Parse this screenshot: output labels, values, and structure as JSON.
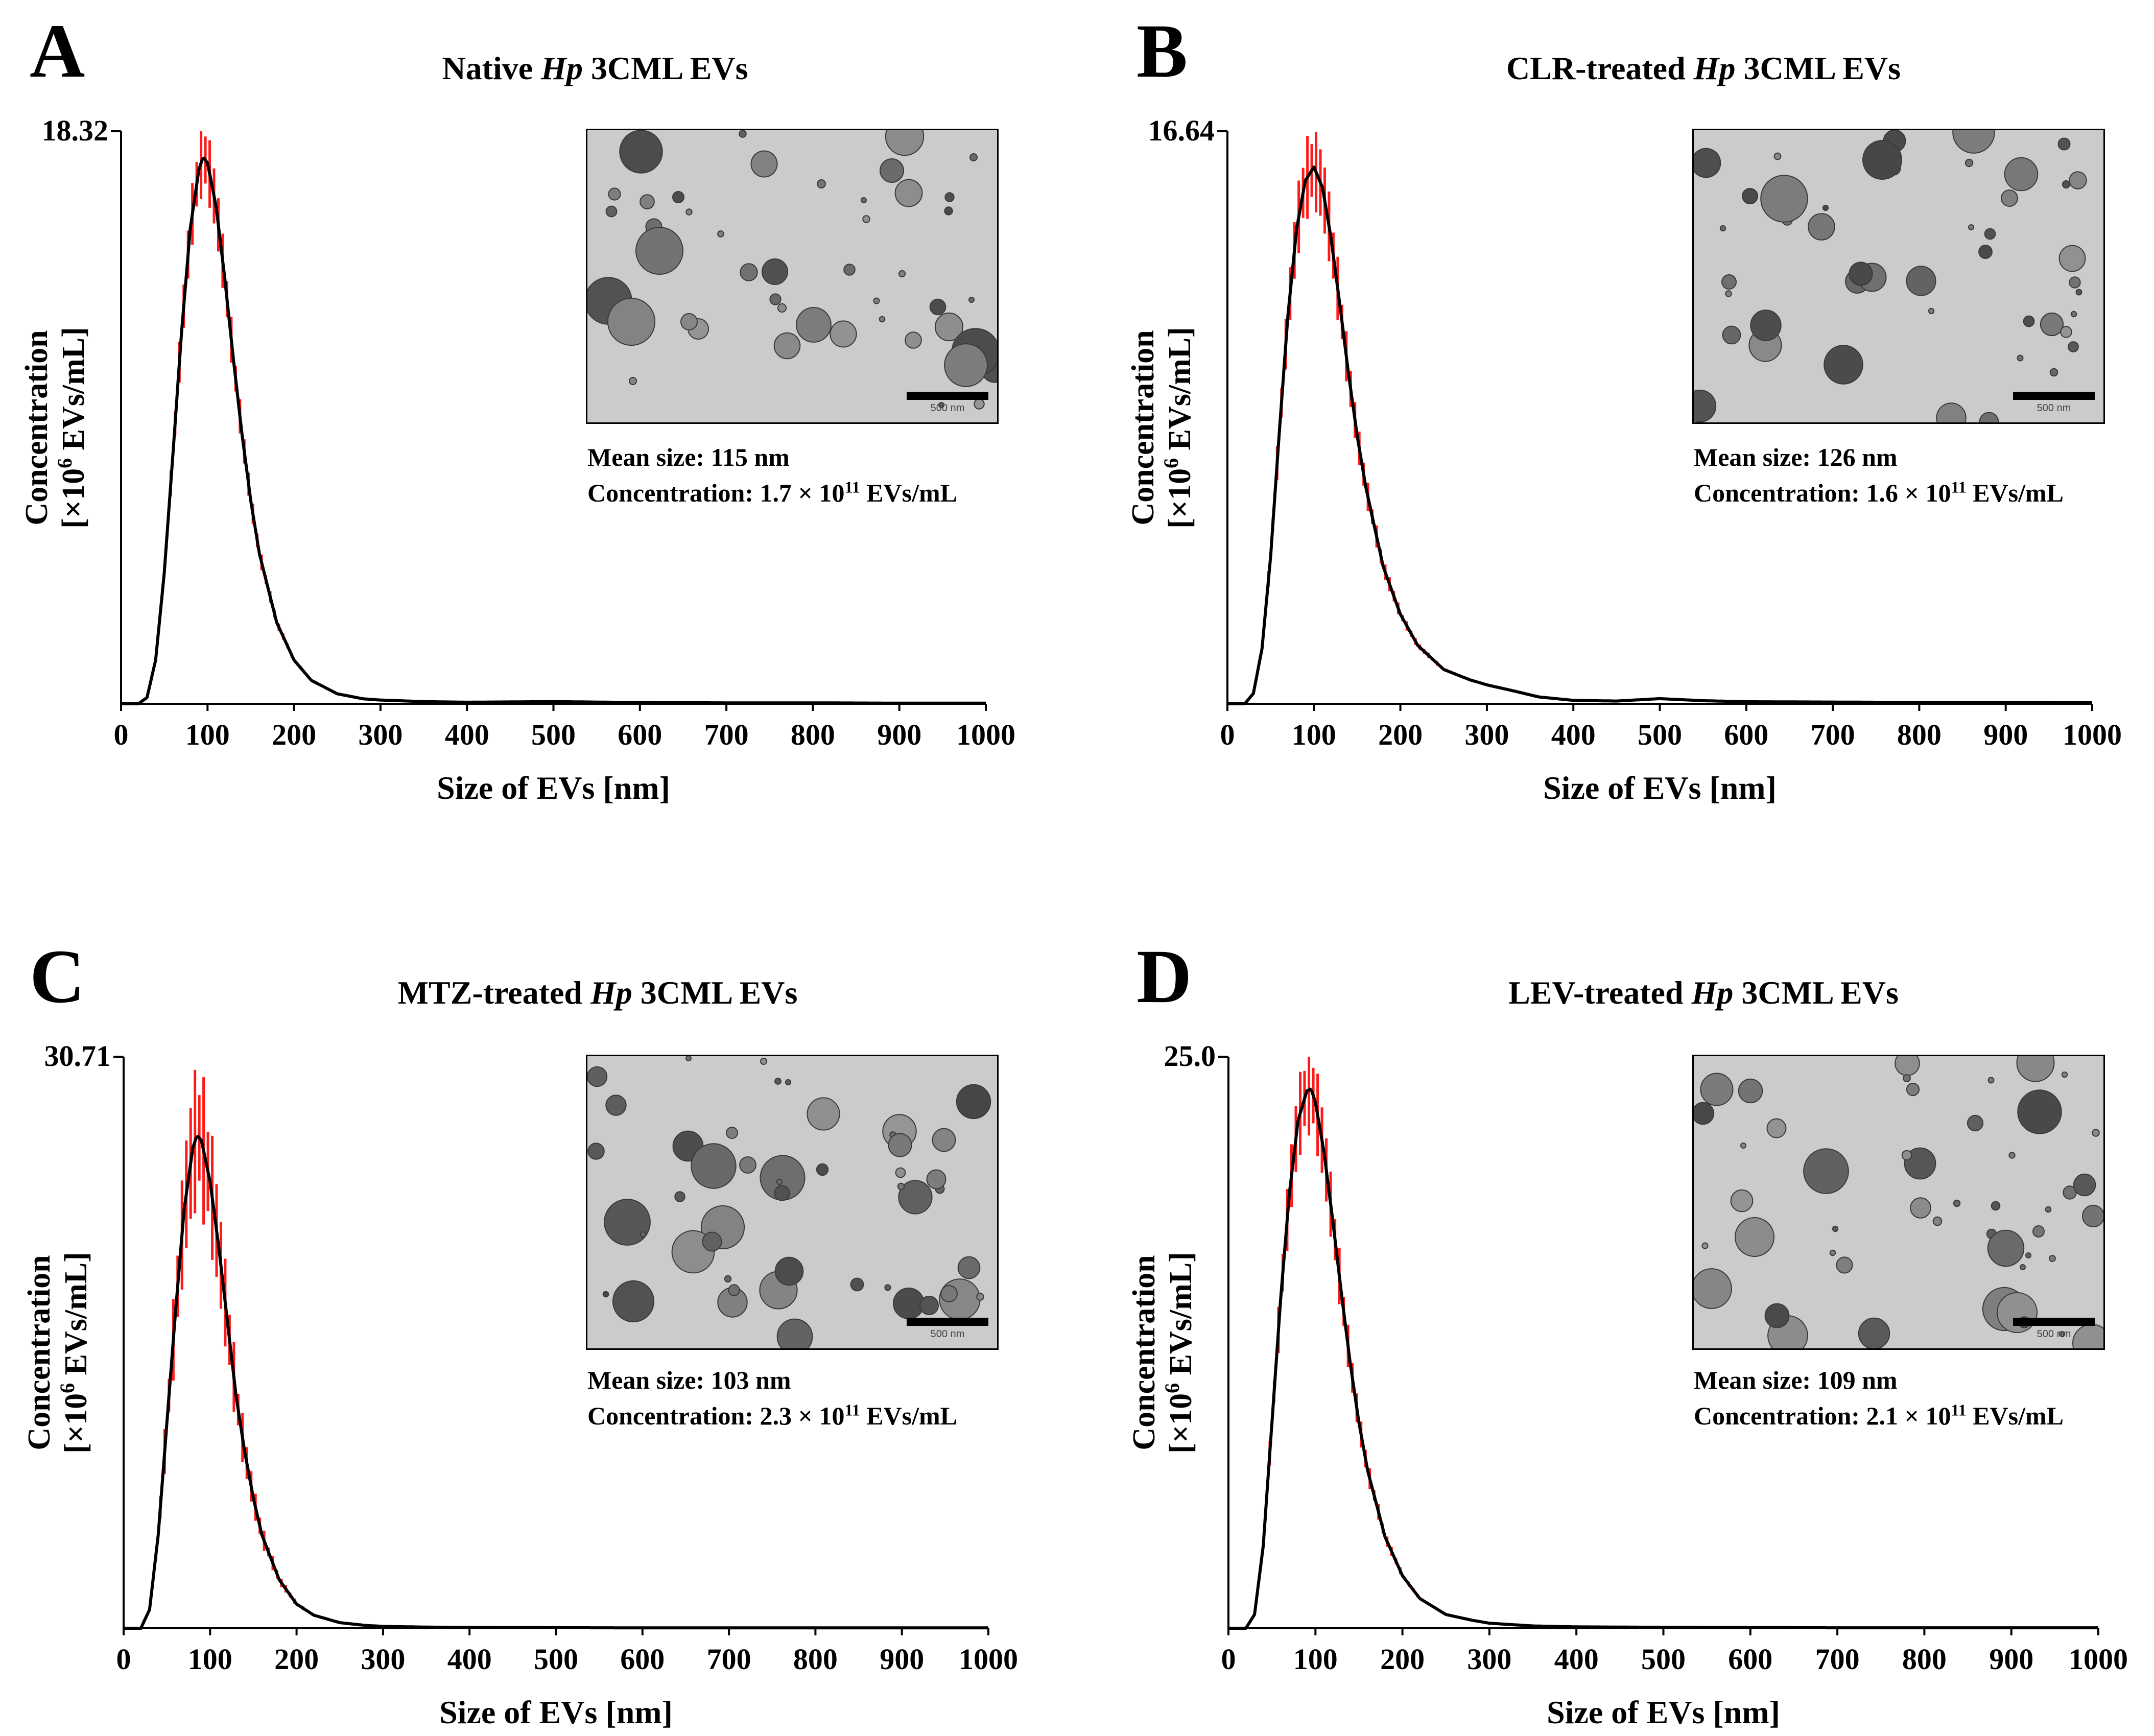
{
  "figure": {
    "x_axis_label": "Size of EVs [nm]",
    "y_axis_label_line1": "Concentration",
    "y_axis_label_line2_prefix": "[×10",
    "y_axis_label_line2_exp": "6",
    "y_axis_label_line2_suffix": " EVs/mL]",
    "x_ticks": [
      0,
      100,
      200,
      300,
      400,
      500,
      600,
      700,
      800,
      900,
      1000
    ],
    "colors": {
      "histogram": "#ff1a1a",
      "curve": "#000000"
    },
    "tem_scale_bar_label": "500 nm"
  },
  "chart_data": [
    {
      "type": "line",
      "panel_letter": "A",
      "title_pre": "Native ",
      "title_italic": "Hp",
      "title_post": " 3CML EVs",
      "y_max_label": "18.32",
      "ylim": [
        0,
        18.32
      ],
      "xlim": [
        0,
        1000
      ],
      "xlabel": "Size of EVs [nm]",
      "ylabel": "Concentration [×10^6 EVs/mL]",
      "series": [
        {
          "name": "Mean concentration (black line)",
          "x": [
            0,
            20,
            30,
            40,
            50,
            60,
            70,
            80,
            90,
            95,
            100,
            110,
            120,
            130,
            140,
            150,
            160,
            180,
            200,
            220,
            250,
            280,
            300,
            350,
            400,
            500,
            600,
            700,
            800,
            900,
            1000
          ],
          "values": [
            0,
            0,
            0.2,
            1.4,
            4.2,
            8.0,
            11.9,
            15.2,
            17.1,
            17.5,
            17.3,
            15.9,
            13.6,
            11.0,
            8.6,
            6.5,
            4.8,
            2.6,
            1.4,
            0.75,
            0.32,
            0.16,
            0.12,
            0.07,
            0.05,
            0.07,
            0.04,
            0.03,
            0.03,
            0.02,
            0.02
          ]
        },
        {
          "name": "Error (red bars)",
          "peak_error": 0.8
        }
      ],
      "mean_size_label": "Mean size: ",
      "mean_size_value": "115 nm",
      "concentration_label": "Concentration: ",
      "concentration_mantissa": "1.7 × 10",
      "concentration_exp": "11",
      "concentration_unit": " EVs/mL"
    },
    {
      "type": "line",
      "panel_letter": "B",
      "title_pre": "CLR-treated ",
      "title_italic": "Hp",
      "title_post": " 3CML EVs",
      "y_max_label": "16.64",
      "ylim": [
        0,
        16.64
      ],
      "xlim": [
        0,
        1000
      ],
      "xlabel": "Size of EVs [nm]",
      "ylabel": "Concentration [×10^6 EVs/mL]",
      "series": [
        {
          "name": "Mean concentration (black line)",
          "x": [
            0,
            20,
            30,
            40,
            50,
            60,
            70,
            80,
            90,
            100,
            110,
            120,
            130,
            140,
            150,
            160,
            180,
            200,
            220,
            250,
            280,
            300,
            330,
            360,
            400,
            450,
            500,
            550,
            600,
            700,
            800,
            900,
            1000
          ],
          "values": [
            0,
            0,
            0.3,
            1.6,
            4.3,
            7.9,
            11.3,
            13.8,
            15.2,
            15.6,
            15.0,
            13.5,
            11.6,
            9.6,
            7.8,
            6.3,
            4.0,
            2.6,
            1.7,
            1.0,
            0.7,
            0.55,
            0.38,
            0.2,
            0.1,
            0.08,
            0.15,
            0.09,
            0.06,
            0.05,
            0.04,
            0.04,
            0.03
          ]
        },
        {
          "name": "Error (red bars)",
          "peak_error": 0.9
        }
      ],
      "mean_size_label": "Mean size: ",
      "mean_size_value": "126 nm",
      "concentration_label": "Concentration: ",
      "concentration_mantissa": "1.6 × 10",
      "concentration_exp": "11",
      "concentration_unit": " EVs/mL"
    },
    {
      "type": "line",
      "panel_letter": "C",
      "title_pre": "MTZ-treated ",
      "title_italic": "Hp",
      "title_post": " 3CML EVs",
      "y_max_label": "30.71",
      "ylim": [
        0,
        30.71
      ],
      "xlim": [
        0,
        1000
      ],
      "xlabel": "Size of EVs [nm]",
      "ylabel": "Concentration [×10^6 EVs/mL]",
      "series": [
        {
          "name": "Mean concentration (black line)",
          "x": [
            0,
            20,
            30,
            40,
            50,
            60,
            70,
            80,
            85,
            90,
            100,
            110,
            120,
            130,
            140,
            150,
            160,
            180,
            200,
            220,
            250,
            280,
            300,
            350,
            400,
            500,
            600,
            700,
            800,
            900,
            1000
          ],
          "values": [
            0,
            0,
            1.0,
            5.0,
            11.0,
            17.0,
            22.5,
            25.8,
            26.5,
            26.2,
            24.0,
            20.5,
            16.5,
            12.5,
            9.5,
            7.0,
            5.0,
            2.6,
            1.3,
            0.7,
            0.3,
            0.15,
            0.1,
            0.06,
            0.04,
            0.03,
            0.02,
            0.02,
            0.02,
            0.02,
            0.02
          ]
        },
        {
          "name": "Error (red bars)",
          "peak_error": 3.5
        }
      ],
      "mean_size_label": "Mean size: ",
      "mean_size_value": "103 nm",
      "concentration_label": "Concentration: ",
      "concentration_mantissa": "2.3 × 10",
      "concentration_exp": "11",
      "concentration_unit": " EVs/mL"
    },
    {
      "type": "line",
      "panel_letter": "D",
      "title_pre": "LEV-treated ",
      "title_italic": "Hp",
      "title_post": " 3CML EVs",
      "y_max_label": "25.0",
      "ylim": [
        0,
        25.0
      ],
      "xlim": [
        0,
        1000
      ],
      "xlabel": "Size of EVs [nm]",
      "ylabel": "Concentration [×10^6 EVs/mL]",
      "series": [
        {
          "name": "Mean concentration (black line)",
          "x": [
            0,
            20,
            30,
            40,
            50,
            60,
            70,
            80,
            90,
            95,
            100,
            110,
            120,
            130,
            140,
            150,
            160,
            180,
            200,
            220,
            250,
            280,
            300,
            350,
            400,
            500,
            600,
            700,
            800,
            900,
            1000
          ],
          "values": [
            0,
            0,
            0.6,
            3.6,
            9.0,
            14.4,
            19.0,
            22.2,
            23.5,
            23.6,
            23.0,
            20.8,
            17.8,
            14.6,
            11.6,
            9.0,
            6.9,
            4.0,
            2.3,
            1.3,
            0.6,
            0.35,
            0.22,
            0.1,
            0.06,
            0.04,
            0.03,
            0.02,
            0.02,
            0.02,
            0.02
          ]
        },
        {
          "name": "Error (red bars)",
          "peak_error": 1.5
        }
      ],
      "mean_size_label": "Mean size: ",
      "mean_size_value": "109 nm",
      "concentration_label": "Concentration: ",
      "concentration_mantissa": "2.1 × 10",
      "concentration_exp": "11",
      "concentration_unit": " EVs/mL"
    }
  ]
}
